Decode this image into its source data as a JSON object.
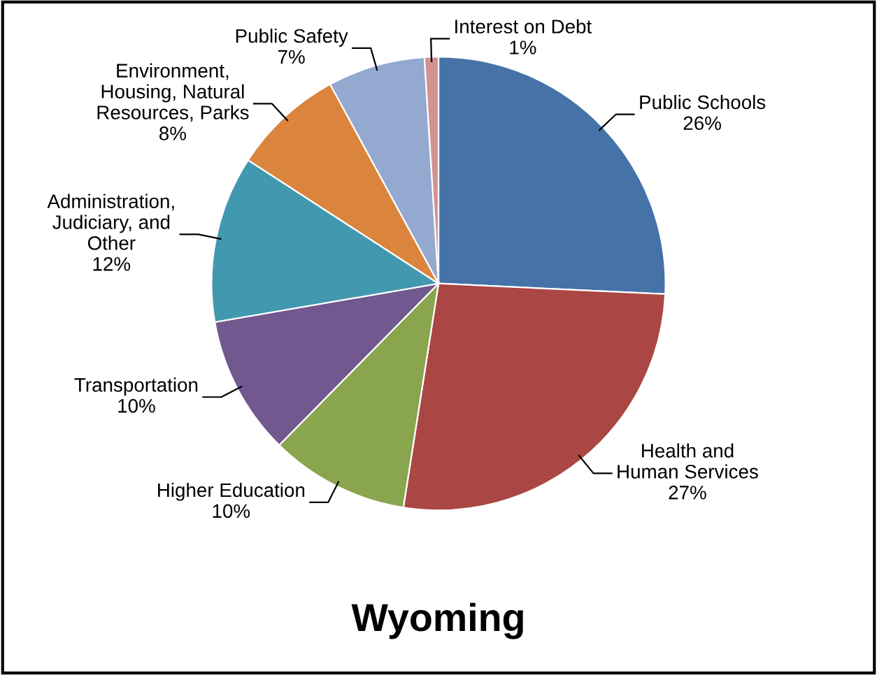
{
  "chart_data": {
    "type": "pie",
    "title": "Wyoming",
    "categories": [
      "Public Schools",
      "Health and\nHuman Services",
      "Higher Education",
      "Transportation",
      "Administration,\nJudiciary, and\nOther",
      "Environment,\nHousing, Natural\nResources, Parks",
      "Public Safety",
      "Interest on Debt"
    ],
    "values": [
      26,
      27,
      10,
      10,
      12,
      8,
      7,
      1
    ],
    "value_labels": [
      "26%",
      "27%",
      "10%",
      "10%",
      "12%",
      "8%",
      "7%",
      "1%"
    ],
    "colors": [
      "#4572a7",
      "#aa4643",
      "#89a54e",
      "#71588f",
      "#4198af",
      "#db843d",
      "#93a9cf",
      "#d09392"
    ],
    "legend": false
  }
}
